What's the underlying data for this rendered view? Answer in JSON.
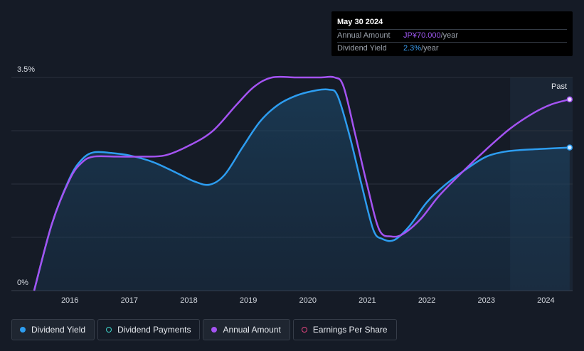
{
  "tooltip": {
    "date": "May 30 2024",
    "annual_amount_label": "Annual Amount",
    "annual_amount_value": "JP¥70.000",
    "annual_amount_unit": "/year",
    "dividend_yield_label": "Dividend Yield",
    "dividend_yield_value": "2.3%",
    "dividend_yield_unit": "/year"
  },
  "past_label": "Past",
  "legend": [
    {
      "label": "Dividend Yield",
      "color": "#2d9df0",
      "filled": true,
      "active": true
    },
    {
      "label": "Dividend Payments",
      "color": "#3fd3c9",
      "filled": false,
      "active": false
    },
    {
      "label": "Annual Amount",
      "color": "#a453f2",
      "filled": true,
      "active": true
    },
    {
      "label": "Earnings Per Share",
      "color": "#e2467f",
      "filled": false,
      "active": false
    }
  ],
  "chart_data": {
    "type": "line",
    "y_tick_labels": [
      "3.5%",
      "0%"
    ],
    "ylim": [
      0,
      3.5
    ],
    "xlim": [
      2015.4,
      2024.45
    ],
    "past_region_start": 2023.4,
    "x_tick_labels": [
      "2016",
      "2017",
      "2018",
      "2019",
      "2020",
      "2021",
      "2022",
      "2023",
      "2024"
    ],
    "x_ticks": [
      2016,
      2017,
      2018,
      2019,
      2020,
      2021,
      2022,
      2023,
      2024
    ],
    "series": [
      {
        "name": "Dividend Yield",
        "color": "#2d9df0",
        "area": true,
        "points": [
          [
            2015.4,
            0.0
          ],
          [
            2015.7,
            1.1
          ],
          [
            2016.0,
            1.85
          ],
          [
            2016.2,
            2.15
          ],
          [
            2016.4,
            2.27
          ],
          [
            2016.7,
            2.26
          ],
          [
            2017.0,
            2.22
          ],
          [
            2017.4,
            2.11
          ],
          [
            2017.8,
            1.93
          ],
          [
            2018.1,
            1.79
          ],
          [
            2018.35,
            1.74
          ],
          [
            2018.6,
            1.9
          ],
          [
            2018.9,
            2.35
          ],
          [
            2019.2,
            2.78
          ],
          [
            2019.5,
            3.05
          ],
          [
            2019.8,
            3.2
          ],
          [
            2020.1,
            3.28
          ],
          [
            2020.35,
            3.3
          ],
          [
            2020.5,
            3.2
          ],
          [
            2020.7,
            2.55
          ],
          [
            2020.9,
            1.75
          ],
          [
            2021.1,
            1.0
          ],
          [
            2021.25,
            0.85
          ],
          [
            2021.45,
            0.83
          ],
          [
            2021.7,
            1.05
          ],
          [
            2022.0,
            1.45
          ],
          [
            2022.3,
            1.73
          ],
          [
            2022.7,
            2.02
          ],
          [
            2023.0,
            2.2
          ],
          [
            2023.3,
            2.28
          ],
          [
            2023.6,
            2.31
          ],
          [
            2024.0,
            2.33
          ],
          [
            2024.4,
            2.35
          ]
        ]
      },
      {
        "name": "Annual Amount",
        "color": "#a453f2",
        "area": false,
        "points": [
          [
            2015.4,
            0.0
          ],
          [
            2015.7,
            1.1
          ],
          [
            2016.0,
            1.83
          ],
          [
            2016.2,
            2.1
          ],
          [
            2016.4,
            2.2
          ],
          [
            2016.8,
            2.2
          ],
          [
            2017.2,
            2.2
          ],
          [
            2017.6,
            2.22
          ],
          [
            2018.0,
            2.38
          ],
          [
            2018.4,
            2.62
          ],
          [
            2018.8,
            3.05
          ],
          [
            2019.1,
            3.35
          ],
          [
            2019.4,
            3.5
          ],
          [
            2019.8,
            3.5
          ],
          [
            2020.2,
            3.5
          ],
          [
            2020.45,
            3.5
          ],
          [
            2020.6,
            3.35
          ],
          [
            2020.8,
            2.55
          ],
          [
            2021.0,
            1.72
          ],
          [
            2021.2,
            1.0
          ],
          [
            2021.4,
            0.89
          ],
          [
            2021.6,
            0.93
          ],
          [
            2021.9,
            1.18
          ],
          [
            2022.2,
            1.55
          ],
          [
            2022.6,
            1.95
          ],
          [
            2023.0,
            2.32
          ],
          [
            2023.4,
            2.66
          ],
          [
            2023.8,
            2.92
          ],
          [
            2024.1,
            3.06
          ],
          [
            2024.4,
            3.14
          ]
        ]
      }
    ]
  }
}
